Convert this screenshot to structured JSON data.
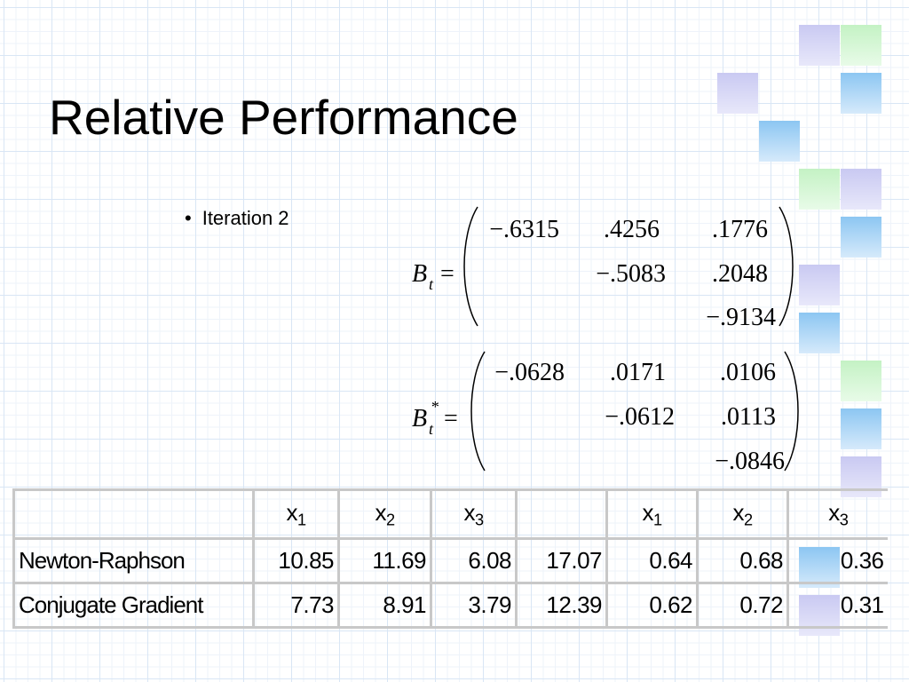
{
  "slide": {
    "title": "Relative Performance",
    "bullet": "Iteration 2"
  },
  "matrix_bt": {
    "label": "B",
    "sub": "t",
    "sup": "",
    "eq": "=",
    "row1": [
      "−.6315",
      ".4256",
      ".1776"
    ],
    "row2": [
      "−.5083",
      ".2048"
    ],
    "row3": [
      "−.9134"
    ]
  },
  "matrix_bt_star": {
    "label": "B",
    "sub": "t",
    "sup": "*",
    "eq": "=",
    "row1": [
      "−.0628",
      ".0171",
      ".0106"
    ],
    "row2": [
      "−.0612",
      ".0113"
    ],
    "row3": [
      "−.0846"
    ]
  },
  "table": {
    "header": [
      "",
      "x",
      "x",
      "x",
      "",
      "x",
      "x",
      "x"
    ],
    "header_sub": [
      "",
      "1",
      "2",
      "3",
      "",
      "1",
      "2",
      "3"
    ],
    "rows": [
      {
        "name": "Newton-Raphson",
        "values": [
          "10.85",
          "11.69",
          "6.08",
          "17.07",
          "0.64",
          "0.68",
          "0.36"
        ]
      },
      {
        "name": "Conjugate Gradient",
        "values": [
          "7.73",
          "8.91",
          "3.79",
          "12.39",
          "0.62",
          "0.72",
          "0.31"
        ]
      }
    ]
  },
  "colors": {
    "lavender": "#c9c9f2",
    "blue": "#8cc6f2",
    "green": "#c4f2c4",
    "grid": "#d9e6f5"
  }
}
